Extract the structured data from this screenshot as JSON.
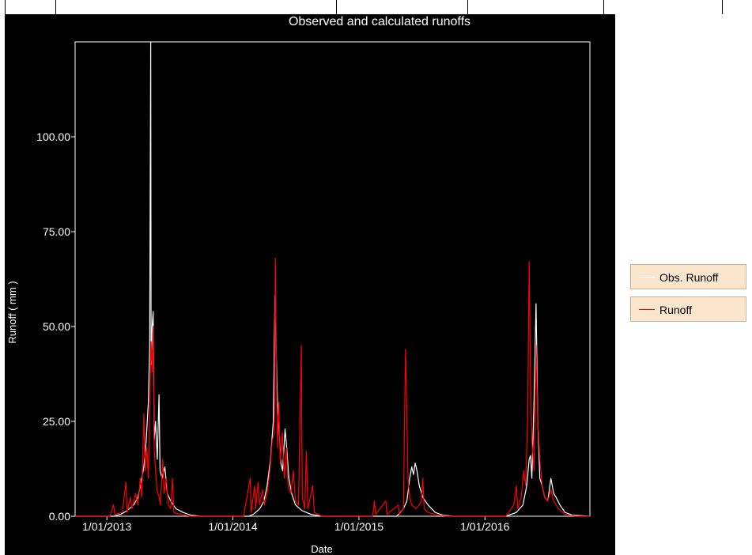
{
  "chart_data": {
    "type": "line",
    "title": "Observed and calculated runoffs",
    "xlabel": "Date",
    "ylabel": "Runoff ( mm )",
    "x_range": [
      "2012-10-01",
      "2016-10-31"
    ],
    "ylim": [
      0,
      125
    ],
    "x_ticks": [
      "1/01/2013",
      "1/01/2014",
      "1/01/2015",
      "1/01/2016"
    ],
    "y_ticks": [
      "0.00",
      "25.00",
      "50.00",
      "75.00",
      "100.00"
    ],
    "grid": false,
    "legend_position": "right",
    "colors": {
      "background": "#000000",
      "axes": "#ffffff",
      "text": "#ffffff"
    },
    "series": [
      {
        "name": "Obs. Runoff",
        "color": "#ffffff",
        "points": [
          [
            "2012-10-01",
            0
          ],
          [
            "2013-01-20",
            0
          ],
          [
            "2013-02-10",
            0.5
          ],
          [
            "2013-03-01",
            1.5
          ],
          [
            "2013-03-20",
            3
          ],
          [
            "2013-04-01",
            5
          ],
          [
            "2013-04-10",
            9
          ],
          [
            "2013-04-18",
            13
          ],
          [
            "2013-04-25",
            20
          ],
          [
            "2013-05-01",
            30
          ],
          [
            "2013-05-05",
            45
          ],
          [
            "2013-05-08",
            125
          ],
          [
            "2013-05-09",
            40
          ],
          [
            "2013-05-12",
            50
          ],
          [
            "2013-05-15",
            54
          ],
          [
            "2013-05-18",
            20
          ],
          [
            "2013-05-22",
            25
          ],
          [
            "2013-05-27",
            15
          ],
          [
            "2013-06-01",
            32
          ],
          [
            "2013-06-04",
            12
          ],
          [
            "2013-06-10",
            10
          ],
          [
            "2013-06-18",
            13
          ],
          [
            "2013-06-25",
            6
          ],
          [
            "2013-07-05",
            4
          ],
          [
            "2013-07-20",
            2
          ],
          [
            "2013-08-10",
            1
          ],
          [
            "2013-09-01",
            0.3
          ],
          [
            "2013-10-01",
            0
          ],
          [
            "2014-02-15",
            0
          ],
          [
            "2014-03-01",
            0.5
          ],
          [
            "2014-03-20",
            2
          ],
          [
            "2014-04-01",
            4
          ],
          [
            "2014-04-10",
            8
          ],
          [
            "2014-04-20",
            15
          ],
          [
            "2014-04-28",
            25
          ],
          [
            "2014-05-03",
            58
          ],
          [
            "2014-05-06",
            45
          ],
          [
            "2014-05-10",
            30
          ],
          [
            "2014-05-15",
            23
          ],
          [
            "2014-05-20",
            14
          ],
          [
            "2014-05-25",
            12
          ],
          [
            "2014-06-01",
            23
          ],
          [
            "2014-06-06",
            18
          ],
          [
            "2014-06-12",
            10
          ],
          [
            "2014-06-20",
            6
          ],
          [
            "2014-07-01",
            3
          ],
          [
            "2014-07-20",
            1.5
          ],
          [
            "2014-08-15",
            0.5
          ],
          [
            "2014-09-15",
            0
          ],
          [
            "2015-04-20",
            0
          ],
          [
            "2015-05-01",
            1
          ],
          [
            "2015-05-10",
            2
          ],
          [
            "2015-05-20",
            4
          ],
          [
            "2015-05-28",
            10
          ],
          [
            "2015-06-03",
            13
          ],
          [
            "2015-06-08",
            11
          ],
          [
            "2015-06-13",
            14
          ],
          [
            "2015-06-18",
            12
          ],
          [
            "2015-06-25",
            8
          ],
          [
            "2015-07-05",
            5
          ],
          [
            "2015-07-20",
            3
          ],
          [
            "2015-08-10",
            1
          ],
          [
            "2015-09-01",
            0.3
          ],
          [
            "2015-10-01",
            0
          ],
          [
            "2016-03-01",
            0
          ],
          [
            "2016-04-01",
            1
          ],
          [
            "2016-04-20",
            3
          ],
          [
            "2016-05-01",
            8
          ],
          [
            "2016-05-08",
            15
          ],
          [
            "2016-05-12",
            16
          ],
          [
            "2016-05-16",
            10
          ],
          [
            "2016-05-22",
            30
          ],
          [
            "2016-05-28",
            56
          ],
          [
            "2016-06-02",
            25
          ],
          [
            "2016-06-08",
            10
          ],
          [
            "2016-06-15",
            8
          ],
          [
            "2016-06-22",
            5
          ],
          [
            "2016-07-01",
            4
          ],
          [
            "2016-07-10",
            10
          ],
          [
            "2016-07-18",
            6
          ],
          [
            "2016-07-25",
            5
          ],
          [
            "2016-08-05",
            3
          ],
          [
            "2016-08-20",
            1
          ],
          [
            "2016-09-10",
            0.3
          ],
          [
            "2016-10-31",
            0
          ]
        ]
      },
      {
        "name": "Runoff",
        "color": "#ff0000",
        "points": [
          [
            "2012-10-01",
            0
          ],
          [
            "2013-01-10",
            0
          ],
          [
            "2013-01-20",
            3
          ],
          [
            "2013-01-24",
            0.5
          ],
          [
            "2013-02-15",
            1
          ],
          [
            "2013-02-25",
            9
          ],
          [
            "2013-03-01",
            1
          ],
          [
            "2013-03-10",
            5
          ],
          [
            "2013-03-15",
            2
          ],
          [
            "2013-03-25",
            6
          ],
          [
            "2013-04-01",
            3
          ],
          [
            "2013-04-08",
            10
          ],
          [
            "2013-04-12",
            5
          ],
          [
            "2013-04-18",
            27
          ],
          [
            "2013-04-22",
            12
          ],
          [
            "2013-04-27",
            18
          ],
          [
            "2013-05-01",
            10
          ],
          [
            "2013-05-05",
            28
          ],
          [
            "2013-05-09",
            46
          ],
          [
            "2013-05-12",
            38
          ],
          [
            "2013-05-15",
            50
          ],
          [
            "2013-05-18",
            18
          ],
          [
            "2013-05-22",
            12
          ],
          [
            "2013-05-26",
            7
          ],
          [
            "2013-06-01",
            5
          ],
          [
            "2013-06-05",
            3
          ],
          [
            "2013-06-12",
            15
          ],
          [
            "2013-06-16",
            6
          ],
          [
            "2013-06-22",
            10
          ],
          [
            "2013-06-28",
            3
          ],
          [
            "2013-07-05",
            2
          ],
          [
            "2013-07-10",
            10
          ],
          [
            "2013-07-14",
            1
          ],
          [
            "2013-08-01",
            0.5
          ],
          [
            "2013-09-01",
            0
          ],
          [
            "2014-02-01",
            0
          ],
          [
            "2014-02-20",
            10
          ],
          [
            "2014-02-23",
            1
          ],
          [
            "2014-03-05",
            8
          ],
          [
            "2014-03-08",
            2
          ],
          [
            "2014-03-15",
            9
          ],
          [
            "2014-03-19",
            3
          ],
          [
            "2014-03-28",
            7
          ],
          [
            "2014-04-02",
            3
          ],
          [
            "2014-04-10",
            6
          ],
          [
            "2014-04-18",
            12
          ],
          [
            "2014-04-25",
            20
          ],
          [
            "2014-05-01",
            22
          ],
          [
            "2014-05-04",
            68
          ],
          [
            "2014-05-07",
            40
          ],
          [
            "2014-05-10",
            18
          ],
          [
            "2014-05-14",
            30
          ],
          [
            "2014-05-18",
            14
          ],
          [
            "2014-05-24",
            22
          ],
          [
            "2014-05-30",
            10
          ],
          [
            "2014-06-05",
            18
          ],
          [
            "2014-06-10",
            8
          ],
          [
            "2014-06-18",
            6
          ],
          [
            "2014-06-25",
            12
          ],
          [
            "2014-07-01",
            4
          ],
          [
            "2014-07-10",
            3
          ],
          [
            "2014-07-18",
            45
          ],
          [
            "2014-07-21",
            5
          ],
          [
            "2014-07-28",
            2
          ],
          [
            "2014-08-02",
            17
          ],
          [
            "2014-08-06",
            2
          ],
          [
            "2014-08-20",
            8
          ],
          [
            "2014-08-25",
            1
          ],
          [
            "2014-09-15",
            0
          ],
          [
            "2015-02-10",
            0
          ],
          [
            "2015-02-15",
            4
          ],
          [
            "2015-02-18",
            0.5
          ],
          [
            "2015-03-20",
            4
          ],
          [
            "2015-03-23",
            0.5
          ],
          [
            "2015-04-25",
            3
          ],
          [
            "2015-04-28",
            0.5
          ],
          [
            "2015-05-10",
            2
          ],
          [
            "2015-05-16",
            44
          ],
          [
            "2015-05-19",
            30
          ],
          [
            "2015-05-23",
            10
          ],
          [
            "2015-05-28",
            5
          ],
          [
            "2015-06-03",
            3
          ],
          [
            "2015-06-15",
            2
          ],
          [
            "2015-06-25",
            3
          ],
          [
            "2015-07-01",
            4
          ],
          [
            "2015-07-05",
            10
          ],
          [
            "2015-07-09",
            2
          ],
          [
            "2015-07-20",
            1
          ],
          [
            "2015-08-15",
            0.3
          ],
          [
            "2015-09-15",
            0
          ],
          [
            "2016-03-01",
            0
          ],
          [
            "2016-03-10",
            1
          ],
          [
            "2016-03-25",
            3
          ],
          [
            "2016-04-01",
            8
          ],
          [
            "2016-04-05",
            2
          ],
          [
            "2016-04-15",
            5
          ],
          [
            "2016-04-22",
            12
          ],
          [
            "2016-04-28",
            8
          ],
          [
            "2016-05-04",
            27
          ],
          [
            "2016-05-08",
            67
          ],
          [
            "2016-05-12",
            35
          ],
          [
            "2016-05-16",
            20
          ],
          [
            "2016-05-22",
            12
          ],
          [
            "2016-05-28",
            45
          ],
          [
            "2016-06-02",
            25
          ],
          [
            "2016-06-08",
            15
          ],
          [
            "2016-06-15",
            8
          ],
          [
            "2016-06-22",
            5
          ],
          [
            "2016-07-01",
            4
          ],
          [
            "2016-07-10",
            7
          ],
          [
            "2016-07-18",
            4
          ],
          [
            "2016-08-01",
            2
          ],
          [
            "2016-08-20",
            0.5
          ],
          [
            "2016-09-20",
            0
          ],
          [
            "2016-10-31",
            0
          ]
        ]
      }
    ]
  }
}
